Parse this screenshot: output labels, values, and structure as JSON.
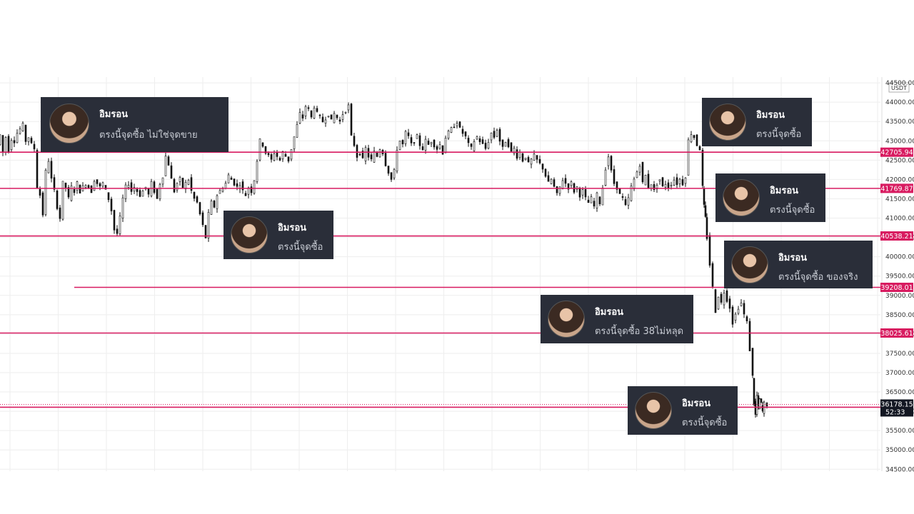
{
  "chart_data": {
    "type": "candlestick",
    "currency": "USDT",
    "y_ticks": [
      44500,
      44000,
      43500,
      43000,
      42500,
      42000,
      41500,
      41000,
      40500,
      40000,
      39500,
      39000,
      38500,
      38000,
      37500,
      37000,
      36500,
      36000,
      35500,
      35000,
      34500
    ],
    "y_tick_labels": [
      "44500.00",
      "44000.00",
      "43500.00",
      "43000.00",
      "42500.00",
      "42000.00",
      "41500.00",
      "41000.00",
      "40500.00",
      "40000.00",
      "39500.00",
      "39000.00",
      "38500.00",
      "38000.00",
      "37500.00",
      "37000.00",
      "36500.00",
      "36000.00",
      "35500.00",
      "35000.00",
      "34500.00"
    ],
    "ylim": [
      34450,
      44650
    ],
    "horizontal_levels": [
      {
        "value": 42705.94,
        "label": "42705.94",
        "partial": false
      },
      {
        "value": 41769.87,
        "label": "41769.87",
        "partial": false
      },
      {
        "value": 40538.21,
        "label": "40538.21",
        "partial": false
      },
      {
        "value": 39208.01,
        "label": "39208.01",
        "partial": true
      },
      {
        "value": 38025.61,
        "label": "38025.61",
        "partial": false
      },
      {
        "value": 36104.22,
        "label": "36104.22",
        "partial": false
      }
    ],
    "last_price": {
      "value": 36178.15,
      "label": "36178.15",
      "countdown": "52:33"
    },
    "price_path": [
      [
        0,
        42900
      ],
      [
        4,
        43150
      ],
      [
        8,
        42700
      ],
      [
        12,
        43100
      ],
      [
        16,
        42750
      ],
      [
        20,
        43050
      ],
      [
        24,
        43000
      ],
      [
        28,
        43200
      ],
      [
        32,
        43300
      ],
      [
        36,
        43400
      ],
      [
        40,
        43000
      ],
      [
        44,
        43100
      ],
      [
        48,
        42900
      ],
      [
        52,
        42800
      ],
      [
        56,
        41800
      ],
      [
        60,
        41600
      ],
      [
        64,
        41100
      ],
      [
        68,
        42200
      ],
      [
        72,
        42500
      ],
      [
        76,
        42000
      ],
      [
        80,
        41700
      ],
      [
        84,
        41300
      ],
      [
        88,
        41000
      ],
      [
        92,
        41900
      ],
      [
        96,
        41800
      ],
      [
        100,
        41500
      ],
      [
        104,
        41800
      ],
      [
        108,
        41700
      ],
      [
        112,
        41900
      ],
      [
        116,
        41700
      ],
      [
        120,
        41800
      ],
      [
        124,
        41900
      ],
      [
        128,
        41800
      ],
      [
        132,
        41700
      ],
      [
        136,
        42000
      ],
      [
        140,
        41900
      ],
      [
        144,
        41800
      ],
      [
        148,
        41900
      ],
      [
        152,
        41700
      ],
      [
        156,
        41500
      ],
      [
        160,
        41200
      ],
      [
        164,
        40700
      ],
      [
        168,
        40600
      ],
      [
        172,
        41000
      ],
      [
        176,
        41500
      ],
      [
        180,
        41800
      ],
      [
        184,
        41900
      ],
      [
        188,
        41700
      ],
      [
        192,
        41800
      ],
      [
        196,
        41700
      ],
      [
        200,
        41600
      ],
      [
        204,
        41700
      ],
      [
        208,
        41800
      ],
      [
        212,
        41600
      ],
      [
        216,
        41900
      ],
      [
        220,
        41700
      ],
      [
        224,
        41500
      ],
      [
        228,
        41900
      ],
      [
        232,
        42100
      ],
      [
        236,
        42600
      ],
      [
        240,
        42400
      ],
      [
        244,
        42000
      ],
      [
        248,
        41700
      ],
      [
        252,
        41900
      ],
      [
        256,
        42000
      ],
      [
        260,
        41800
      ],
      [
        264,
        41900
      ],
      [
        268,
        42000
      ],
      [
        272,
        41700
      ],
      [
        276,
        41500
      ],
      [
        280,
        41400
      ],
      [
        284,
        41100
      ],
      [
        288,
        40800
      ],
      [
        292,
        40500
      ],
      [
        296,
        41100
      ],
      [
        300,
        41400
      ],
      [
        304,
        41300
      ],
      [
        308,
        41600
      ],
      [
        312,
        41700
      ],
      [
        316,
        41800
      ],
      [
        320,
        41900
      ],
      [
        324,
        42100
      ],
      [
        328,
        42000
      ],
      [
        332,
        41900
      ],
      [
        336,
        41800
      ],
      [
        340,
        41900
      ],
      [
        344,
        41700
      ],
      [
        348,
        41600
      ],
      [
        352,
        41800
      ],
      [
        356,
        41700
      ],
      [
        360,
        42000
      ],
      [
        364,
        42500
      ],
      [
        368,
        43000
      ],
      [
        372,
        42900
      ],
      [
        376,
        42700
      ],
      [
        380,
        42600
      ],
      [
        384,
        42500
      ],
      [
        388,
        42700
      ],
      [
        392,
        42600
      ],
      [
        396,
        42500
      ],
      [
        400,
        42700
      ],
      [
        404,
        42600
      ],
      [
        408,
        42500
      ],
      [
        412,
        42800
      ],
      [
        416,
        43100
      ],
      [
        420,
        43400
      ],
      [
        424,
        43700
      ],
      [
        428,
        43600
      ],
      [
        432,
        43900
      ],
      [
        436,
        43800
      ],
      [
        440,
        43600
      ],
      [
        444,
        43900
      ],
      [
        448,
        43700
      ],
      [
        452,
        43600
      ],
      [
        456,
        43500
      ],
      [
        460,
        43600
      ],
      [
        464,
        43700
      ],
      [
        468,
        43500
      ],
      [
        472,
        43700
      ],
      [
        476,
        43600
      ],
      [
        480,
        43500
      ],
      [
        484,
        43700
      ],
      [
        488,
        43800
      ],
      [
        492,
        43900
      ],
      [
        496,
        43100
      ],
      [
        500,
        42900
      ],
      [
        504,
        42600
      ],
      [
        508,
        42700
      ],
      [
        512,
        42500
      ],
      [
        516,
        42800
      ],
      [
        520,
        42600
      ],
      [
        524,
        42500
      ],
      [
        528,
        42700
      ],
      [
        532,
        42600
      ],
      [
        536,
        42800
      ],
      [
        540,
        42700
      ],
      [
        544,
        42400
      ],
      [
        548,
        42200
      ],
      [
        552,
        42000
      ],
      [
        556,
        42200
      ],
      [
        560,
        42800
      ],
      [
        564,
        43000
      ],
      [
        568,
        42900
      ],
      [
        572,
        43200
      ],
      [
        576,
        43100
      ],
      [
        580,
        42900
      ],
      [
        584,
        43000
      ],
      [
        588,
        43100
      ],
      [
        592,
        42900
      ],
      [
        596,
        42800
      ],
      [
        600,
        43000
      ],
      [
        604,
        42900
      ],
      [
        608,
        43000
      ],
      [
        612,
        42900
      ],
      [
        616,
        42800
      ],
      [
        620,
        42900
      ],
      [
        624,
        42700
      ],
      [
        628,
        43100
      ],
      [
        632,
        43200
      ],
      [
        636,
        43300
      ],
      [
        640,
        43400
      ],
      [
        644,
        43500
      ],
      [
        648,
        43300
      ],
      [
        652,
        43200
      ],
      [
        656,
        43100
      ],
      [
        660,
        42900
      ],
      [
        664,
        42800
      ],
      [
        668,
        43000
      ],
      [
        672,
        43100
      ],
      [
        676,
        43000
      ],
      [
        680,
        42900
      ],
      [
        684,
        42800
      ],
      [
        688,
        43000
      ],
      [
        692,
        43200
      ],
      [
        696,
        43100
      ],
      [
        700,
        43300
      ],
      [
        704,
        43000
      ],
      [
        708,
        42800
      ],
      [
        712,
        43000
      ],
      [
        716,
        42900
      ],
      [
        720,
        42700
      ],
      [
        724,
        42800
      ],
      [
        728,
        42600
      ],
      [
        732,
        42700
      ],
      [
        736,
        42500
      ],
      [
        740,
        42600
      ],
      [
        744,
        42400
      ],
      [
        748,
        42500
      ],
      [
        752,
        42600
      ],
      [
        756,
        42500
      ],
      [
        760,
        42400
      ],
      [
        764,
        42300
      ],
      [
        768,
        42100
      ],
      [
        772,
        41900
      ],
      [
        776,
        42000
      ],
      [
        780,
        41800
      ],
      [
        784,
        41600
      ],
      [
        788,
        41800
      ],
      [
        792,
        42000
      ],
      [
        796,
        41900
      ],
      [
        800,
        41800
      ],
      [
        804,
        41900
      ],
      [
        808,
        41700
      ],
      [
        812,
        41800
      ],
      [
        816,
        41600
      ],
      [
        820,
        41700
      ],
      [
        824,
        41500
      ],
      [
        828,
        41400
      ],
      [
        832,
        41500
      ],
      [
        836,
        41300
      ],
      [
        840,
        41600
      ],
      [
        844,
        41400
      ],
      [
        848,
        41800
      ],
      [
        852,
        42300
      ],
      [
        856,
        42600
      ],
      [
        860,
        42200
      ],
      [
        864,
        41900
      ],
      [
        868,
        41800
      ],
      [
        872,
        41600
      ],
      [
        876,
        41500
      ],
      [
        880,
        41300
      ],
      [
        884,
        41500
      ],
      [
        888,
        41800
      ],
      [
        892,
        42000
      ],
      [
        896,
        42200
      ],
      [
        900,
        42400
      ],
      [
        904,
        41900
      ],
      [
        908,
        42100
      ],
      [
        912,
        41800
      ],
      [
        916,
        41900
      ],
      [
        920,
        41700
      ],
      [
        924,
        41900
      ],
      [
        928,
        42000
      ],
      [
        932,
        41800
      ],
      [
        936,
        41900
      ],
      [
        940,
        41800
      ],
      [
        944,
        41900
      ],
      [
        948,
        42000
      ],
      [
        952,
        41900
      ],
      [
        956,
        42000
      ],
      [
        960,
        41900
      ],
      [
        964,
        42100
      ],
      [
        968,
        43000
      ],
      [
        972,
        43200
      ],
      [
        976,
        43100
      ],
      [
        980,
        42900
      ],
      [
        984,
        42800
      ],
      [
        986,
        41800
      ],
      [
        988,
        41300
      ],
      [
        990,
        41000
      ],
      [
        994,
        40500
      ],
      [
        998,
        39800
      ],
      [
        1002,
        39200
      ],
      [
        1006,
        38600
      ],
      [
        1010,
        39000
      ],
      [
        1014,
        38800
      ],
      [
        1018,
        39100
      ],
      [
        1022,
        38900
      ],
      [
        1026,
        38700
      ],
      [
        1030,
        38300
      ],
      [
        1034,
        38500
      ],
      [
        1038,
        38700
      ],
      [
        1042,
        38800
      ],
      [
        1046,
        38500
      ],
      [
        1050,
        38300
      ],
      [
        1054,
        37600
      ],
      [
        1056,
        36900
      ],
      [
        1058,
        36200
      ],
      [
        1060,
        35900
      ],
      [
        1062,
        36400
      ],
      [
        1064,
        36100
      ],
      [
        1066,
        36300
      ],
      [
        1068,
        36200
      ],
      [
        1070,
        36000
      ],
      [
        1074,
        36200
      ],
      [
        1076,
        36178
      ]
    ]
  },
  "comments": [
    {
      "name": "อิมรอน",
      "text": "ตรงนี้จุดซื้อ ไม่ใช่จุดขาย"
    },
    {
      "name": "อิมรอน",
      "text": "ตรงนี้จุดซื้อ"
    },
    {
      "name": "อิมรอน",
      "text": "ตรงนี้จุดซื้อ"
    },
    {
      "name": "อิมรอน",
      "text": "ตรงนี้จุดซื้อ"
    },
    {
      "name": "อิมรอน",
      "text": "ตรงนี้จุดซื้อ ของจริง"
    },
    {
      "name": "อิมรอน",
      "text": "ตรงนี้จุดซื้อ 38ไม่หลุด"
    },
    {
      "name": "อิมรอน",
      "text": "ตรงนี้จุดซื้อ"
    }
  ],
  "colors": {
    "level_line": "#d81b60",
    "level_tag": "#d81b60",
    "candle": "#111111",
    "grid": "#eeeeee",
    "comment_bg": "#2a2e39",
    "last_price_tag": "#131722"
  }
}
